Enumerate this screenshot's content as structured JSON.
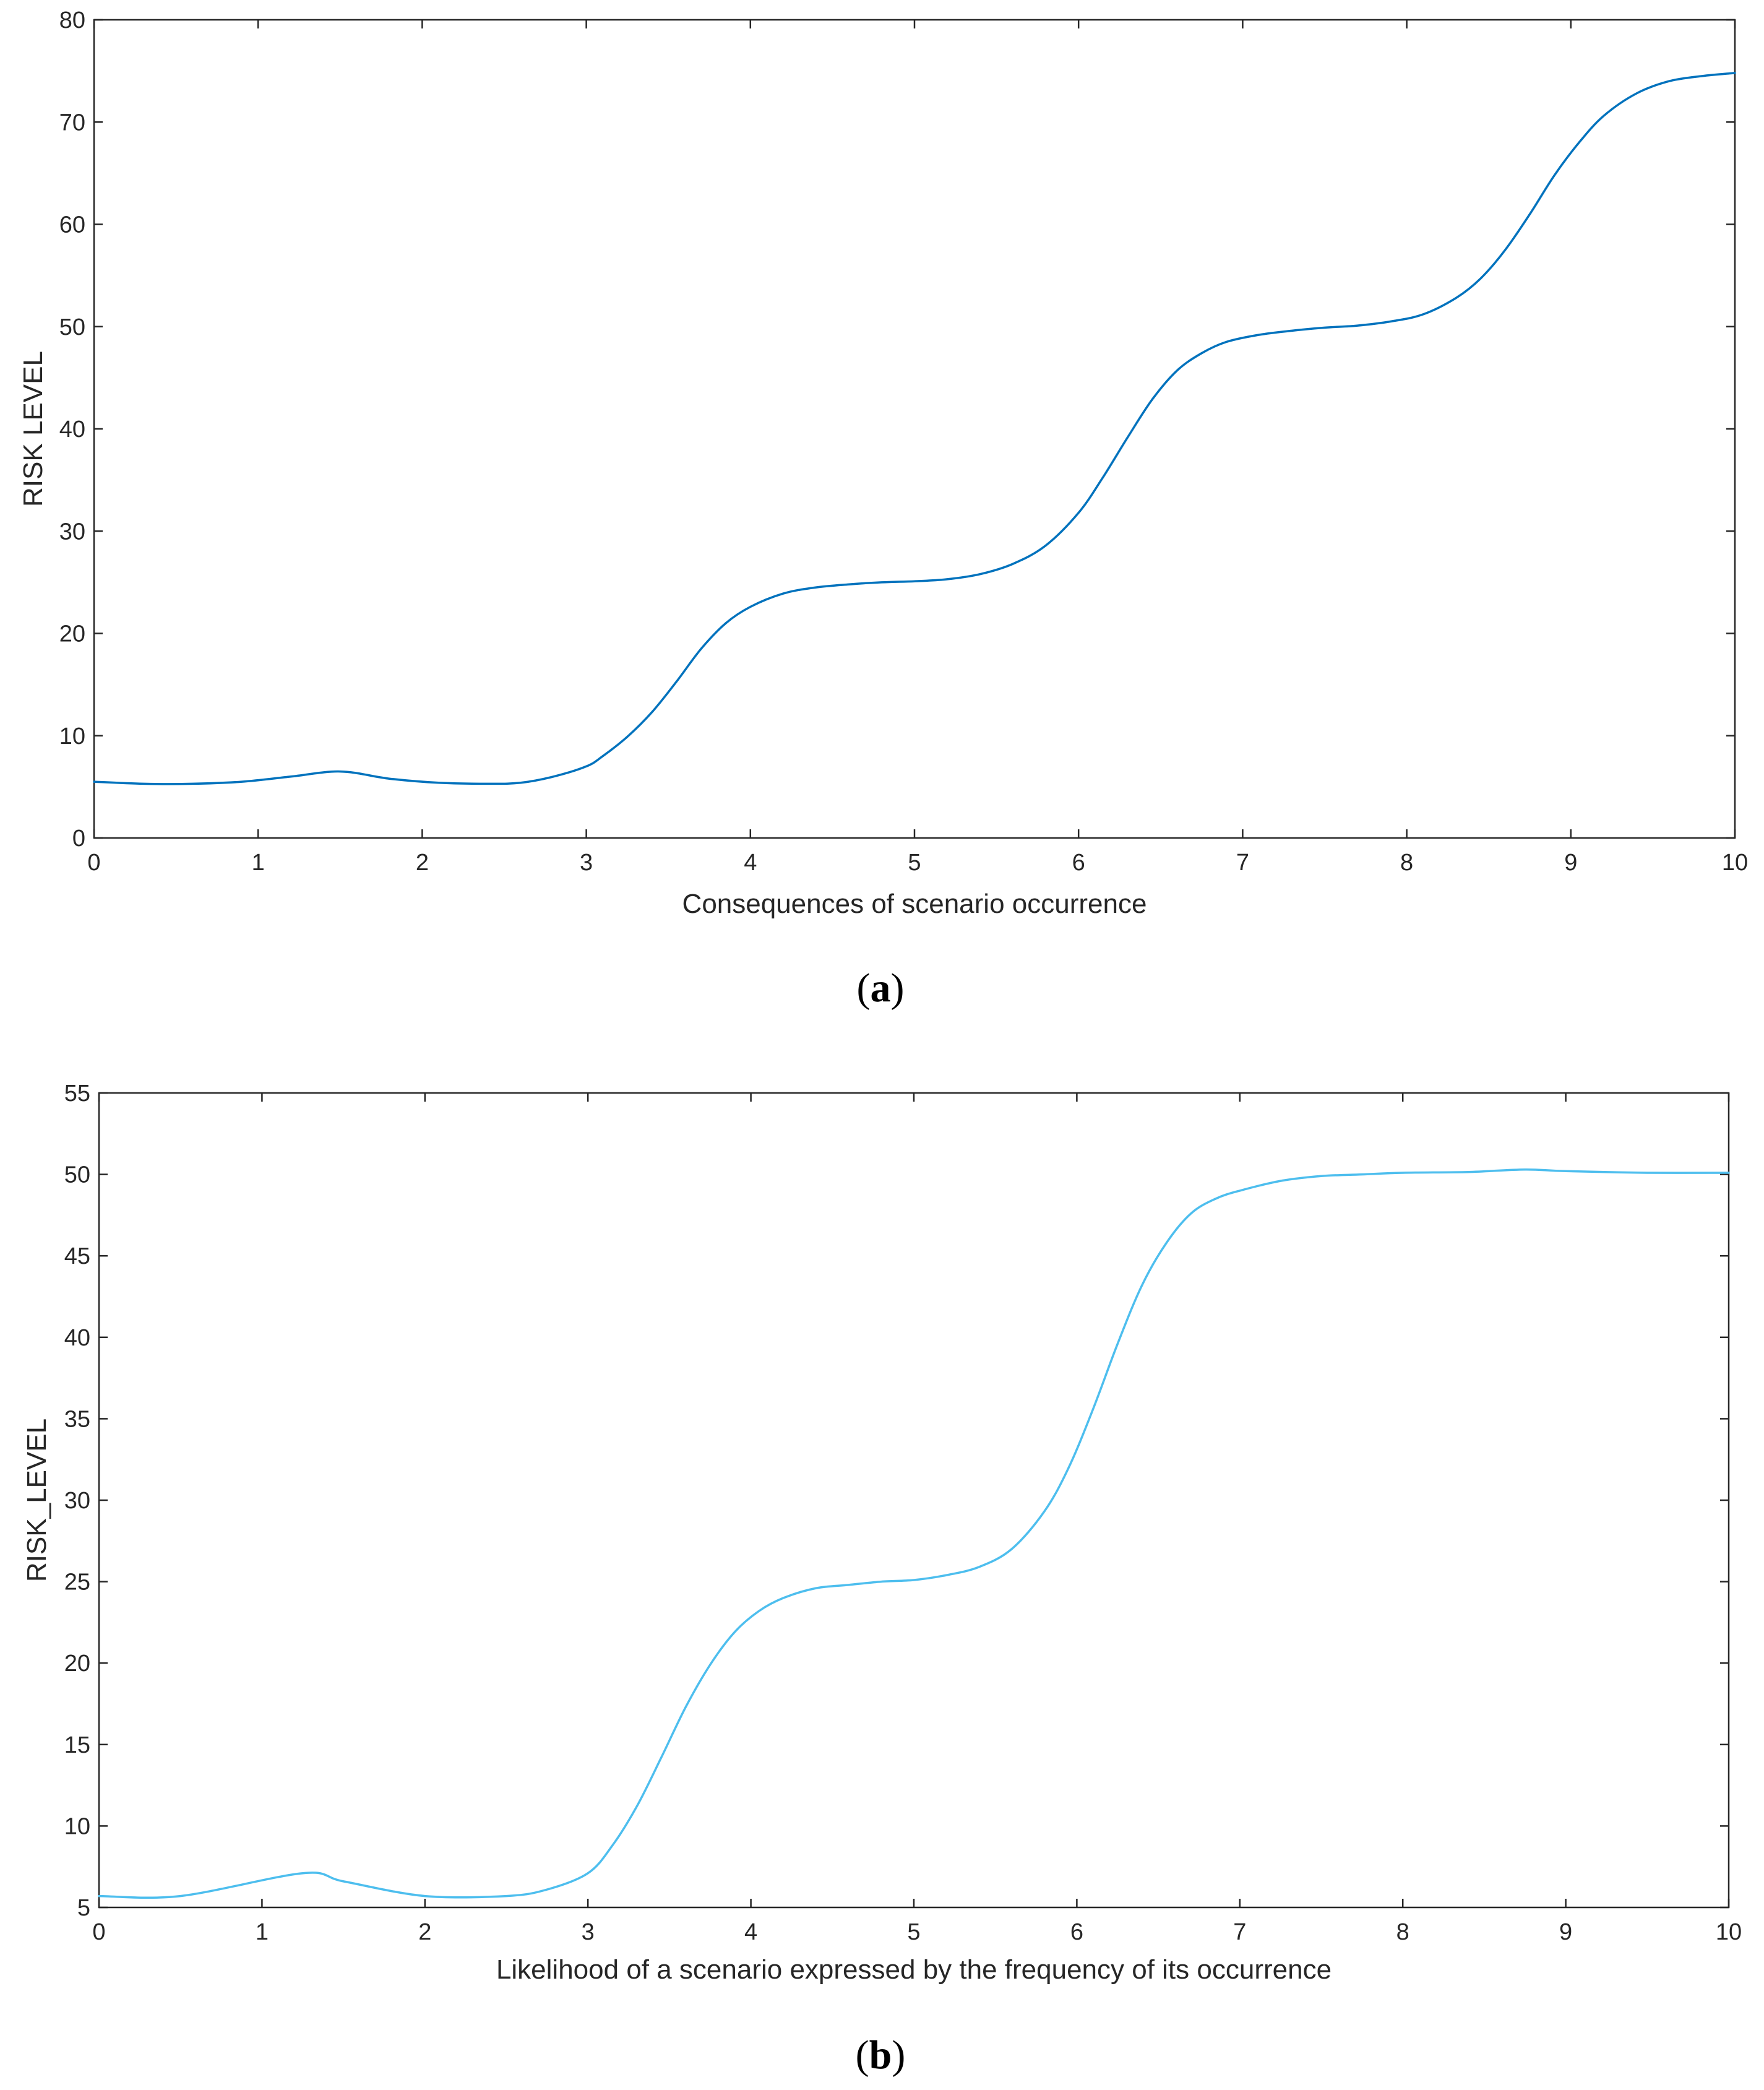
{
  "chart_data": [
    {
      "panel": "(a)",
      "type": "line",
      "xlabel": "Consequences of scenario occurrence",
      "ylabel": "RISK LEVEL",
      "xlim": [
        0,
        10
      ],
      "ylim": [
        0,
        80
      ],
      "xticks": [
        0,
        1,
        2,
        3,
        4,
        5,
        6,
        7,
        8,
        9,
        10
      ],
      "yticks": [
        0,
        10,
        20,
        30,
        40,
        50,
        60,
        70,
        80
      ],
      "grid": false,
      "color": "#0072BD",
      "series": [
        {
          "x": [
            0,
            0.3,
            0.6,
            0.9,
            1.2,
            1.5,
            1.8,
            2.1,
            2.4,
            2.6,
            2.8,
            3.0,
            3.1,
            3.25,
            3.4,
            3.55,
            3.7,
            3.85,
            4.0,
            4.2,
            4.4,
            4.6,
            4.8,
            5.0,
            5.2,
            5.4,
            5.6,
            5.8,
            6.0,
            6.15,
            6.3,
            6.45,
            6.6,
            6.75,
            6.9,
            7.1,
            7.3,
            7.5,
            7.7,
            7.9,
            8.1,
            8.3,
            8.45,
            8.6,
            8.75,
            8.9,
            9.05,
            9.2,
            9.4,
            9.6,
            9.8,
            10.0
          ],
          "y": [
            5.5,
            5.3,
            5.3,
            5.5,
            6.0,
            6.5,
            5.8,
            5.4,
            5.3,
            5.4,
            6.0,
            7.0,
            8.0,
            9.9,
            12.3,
            15.3,
            18.5,
            21.0,
            22.6,
            23.9,
            24.5,
            24.8,
            25.0,
            25.1,
            25.3,
            25.8,
            26.8,
            28.6,
            31.8,
            35.3,
            39.2,
            42.9,
            45.7,
            47.4,
            48.5,
            49.2,
            49.6,
            49.9,
            50.1,
            50.5,
            51.2,
            52.8,
            54.7,
            57.5,
            61.0,
            64.8,
            68.0,
            70.6,
            72.8,
            74.0,
            74.5,
            74.8
          ]
        }
      ]
    },
    {
      "panel": "(b)",
      "type": "line",
      "xlabel": "Likelihood of a scenario expressed by the frequency of its occurrence",
      "ylabel": "RISK_LEVEL",
      "xlim": [
        0,
        10
      ],
      "ylim": [
        5,
        55
      ],
      "xticks": [
        0,
        1,
        2,
        3,
        4,
        5,
        6,
        7,
        8,
        9,
        10
      ],
      "yticks": [
        5,
        10,
        15,
        20,
        25,
        30,
        35,
        40,
        45,
        50,
        55
      ],
      "grid": false,
      "color": "#4DBEEE",
      "series": [
        {
          "x": [
            0,
            0.5,
            1.25,
            1.5,
            2.0,
            2.5,
            2.75,
            3.0,
            3.15,
            3.3,
            3.45,
            3.6,
            3.75,
            3.9,
            4.05,
            4.2,
            4.4,
            4.6,
            4.8,
            5.0,
            5.2,
            5.4,
            5.6,
            5.8,
            5.95,
            6.1,
            6.25,
            6.4,
            6.55,
            6.7,
            6.85,
            7.0,
            7.25,
            7.5,
            7.75,
            8.0,
            8.4,
            8.75,
            9.0,
            9.5,
            10.0
          ],
          "y": [
            5.7,
            5.7,
            7.1,
            6.6,
            5.7,
            5.7,
            6.1,
            7.1,
            8.8,
            11.2,
            14.2,
            17.3,
            19.9,
            21.9,
            23.2,
            24.0,
            24.6,
            24.8,
            25.0,
            25.1,
            25.4,
            25.9,
            27.0,
            29.3,
            32.0,
            35.6,
            39.6,
            43.2,
            45.8,
            47.6,
            48.5,
            49.0,
            49.6,
            49.9,
            50.0,
            50.1,
            50.15,
            50.3,
            50.2,
            50.1,
            50.1
          ]
        }
      ]
    }
  ]
}
